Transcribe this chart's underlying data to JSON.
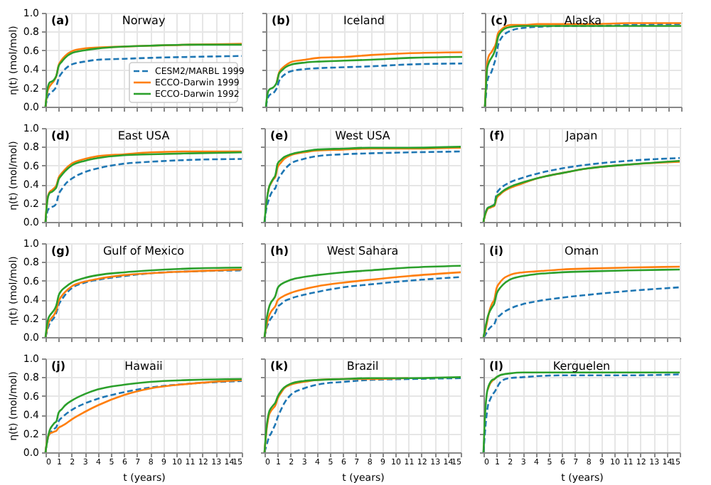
{
  "chart_data": [
    {
      "type": "line",
      "title": "Norway",
      "annotations": [
        "(a)"
      ],
      "x": [
        0,
        0.083,
        0.167,
        0.25,
        0.333,
        0.5,
        0.667,
        0.833,
        1,
        1.25,
        1.5,
        2,
        3,
        4,
        6,
        8,
        11,
        15
      ],
      "xlim": [
        0,
        15
      ],
      "xticks": [
        0,
        1,
        2,
        3,
        4,
        5,
        6,
        7,
        8,
        9,
        10,
        11,
        12,
        13,
        14,
        15
      ],
      "ylim": [
        0,
        1
      ],
      "yticks": [
        {
          "value": 0,
          "label": "0.0"
        },
        {
          "value": 0.2,
          "label": "0.2"
        },
        {
          "value": 0.4,
          "label": "0.4"
        },
        {
          "value": 0.6,
          "label": "0.6"
        },
        {
          "value": 0.8,
          "label": "0.8"
        },
        {
          "value": 1,
          "label": "1.0"
        }
      ],
      "grid": true,
      "tick_labels": "y",
      "ylabel": "η(t) (mol/mol)",
      "legend": "bottom right",
      "series": [
        {
          "name": "CESM2/MARBL 1999",
          "color": "#1f77b4",
          "line_style": "dashed",
          "values": [
            0,
            0.06,
            0.11,
            0.13,
            0.14,
            0.16,
            0.18,
            0.22,
            0.3,
            0.36,
            0.4,
            0.45,
            0.48,
            0.5,
            0.51,
            0.52,
            0.53,
            0.54
          ]
        },
        {
          "name": "ECCO-Darwin 1999",
          "color": "#ff7f0e",
          "line_style": "solid",
          "values": [
            0,
            0.1,
            0.17,
            0.2,
            0.22,
            0.25,
            0.28,
            0.33,
            0.44,
            0.5,
            0.54,
            0.59,
            0.62,
            0.63,
            0.64,
            0.65,
            0.66,
            0.67
          ]
        },
        {
          "name": "ECCO-Darwin 1992",
          "color": "#2ca02c",
          "line_style": "solid",
          "values": [
            0,
            0.12,
            0.2,
            0.24,
            0.26,
            0.27,
            0.29,
            0.33,
            0.43,
            0.48,
            0.52,
            0.57,
            0.6,
            0.62,
            0.64,
            0.65,
            0.66,
            0.66
          ]
        }
      ]
    },
    {
      "type": "line",
      "title": "Iceland",
      "annotations": [
        "(b)"
      ],
      "x": [
        0,
        0.083,
        0.167,
        0.25,
        0.333,
        0.5,
        0.667,
        0.833,
        1,
        1.25,
        1.5,
        2,
        3,
        4,
        6,
        8,
        11,
        15
      ],
      "xlim": [
        0,
        15
      ],
      "xticks": [
        0,
        1,
        2,
        3,
        4,
        5,
        6,
        7,
        8,
        9,
        10,
        11,
        12,
        13,
        14,
        15
      ],
      "ylim": [
        0,
        1
      ],
      "yticks": [
        0,
        0.2,
        0.4,
        0.6,
        0.8,
        1
      ],
      "grid": true,
      "tick_labels": false,
      "series": [
        {
          "color": "#1f77b4",
          "line_style": "dashed",
          "values": [
            0,
            0.06,
            0.1,
            0.12,
            0.13,
            0.14,
            0.16,
            0.2,
            0.27,
            0.32,
            0.35,
            0.38,
            0.4,
            0.41,
            0.42,
            0.43,
            0.45,
            0.46
          ]
        },
        {
          "color": "#ff7f0e",
          "line_style": "solid",
          "values": [
            null,
            null,
            null,
            null,
            null,
            null,
            null,
            0.26,
            0.36,
            0.41,
            0.44,
            0.48,
            0.5,
            0.52,
            0.53,
            0.55,
            0.57,
            0.58
          ]
        },
        {
          "color": "#2ca02c",
          "line_style": "solid",
          "values": [
            0,
            0.1,
            0.16,
            0.18,
            0.19,
            0.2,
            0.22,
            0.26,
            0.35,
            0.39,
            0.42,
            0.45,
            0.47,
            0.48,
            0.49,
            0.5,
            0.52,
            0.53
          ]
        }
      ]
    },
    {
      "type": "line",
      "title": "Alaska",
      "annotations": [
        "(c)"
      ],
      "x": [
        0,
        0.083,
        0.167,
        0.25,
        0.333,
        0.5,
        0.667,
        0.833,
        1,
        1.25,
        1.5,
        2,
        3,
        4,
        6,
        8,
        11,
        15
      ],
      "xlim": [
        0,
        15
      ],
      "xticks": [
        0,
        1,
        2,
        3,
        4,
        5,
        6,
        7,
        8,
        9,
        10,
        11,
        12,
        13,
        14,
        15
      ],
      "ylim": [
        0,
        1
      ],
      "yticks": [
        0,
        0.2,
        0.4,
        0.6,
        0.8,
        1
      ],
      "grid": true,
      "tick_labels": false,
      "series": [
        {
          "color": "#1f77b4",
          "line_style": "dashed",
          "values": [
            0,
            0.12,
            0.25,
            0.31,
            0.33,
            0.37,
            0.44,
            0.52,
            0.65,
            0.73,
            0.77,
            0.81,
            0.84,
            0.85,
            0.86,
            0.86,
            0.87,
            0.88
          ]
        },
        {
          "color": "#ff7f0e",
          "line_style": "solid",
          "values": [
            0,
            0.25,
            0.45,
            0.52,
            0.55,
            0.58,
            0.62,
            0.67,
            0.78,
            0.82,
            0.85,
            0.87,
            0.87,
            0.88,
            0.88,
            0.88,
            0.89,
            0.89
          ]
        },
        {
          "color": "#2ca02c",
          "line_style": "solid",
          "values": [
            0,
            0.22,
            0.4,
            0.45,
            0.48,
            0.52,
            0.56,
            0.63,
            0.74,
            0.8,
            0.83,
            0.85,
            0.86,
            0.86,
            0.86,
            0.86,
            0.86,
            0.86
          ]
        }
      ]
    },
    {
      "type": "line",
      "title": "East USA",
      "annotations": [
        "(d)"
      ],
      "x": [
        0,
        0.083,
        0.167,
        0.25,
        0.333,
        0.5,
        0.667,
        0.833,
        1,
        1.25,
        1.5,
        2,
        3,
        4,
        6,
        8,
        11,
        15
      ],
      "xlim": [
        0,
        15
      ],
      "xticks": [
        0,
        1,
        2,
        3,
        4,
        5,
        6,
        7,
        8,
        9,
        10,
        11,
        12,
        13,
        14,
        15
      ],
      "ylim": [
        0,
        1
      ],
      "yticks": [
        {
          "value": 0,
          "label": "0.0"
        },
        {
          "value": 0.2,
          "label": "0.2"
        },
        {
          "value": 0.4,
          "label": "0.4"
        },
        {
          "value": 0.6,
          "label": "0.6"
        },
        {
          "value": 0.8,
          "label": "0.8"
        },
        {
          "value": 1,
          "label": "1.0"
        }
      ],
      "grid": true,
      "tick_labels": "y",
      "ylabel": "η(t) (mol/mol)",
      "series": [
        {
          "color": "#1f77b4",
          "line_style": "dashed",
          "values": [
            0,
            0.07,
            0.12,
            0.14,
            0.15,
            0.16,
            0.17,
            0.2,
            0.29,
            0.35,
            0.4,
            0.46,
            0.53,
            0.57,
            0.62,
            0.64,
            0.66,
            0.67
          ]
        },
        {
          "color": "#ff7f0e",
          "line_style": "solid",
          "values": [
            0,
            0.16,
            0.26,
            0.3,
            0.32,
            0.34,
            0.36,
            0.39,
            0.47,
            0.52,
            0.56,
            0.62,
            0.67,
            0.7,
            0.72,
            0.74,
            0.75,
            0.75
          ]
        },
        {
          "color": "#2ca02c",
          "line_style": "solid",
          "values": [
            0,
            0.15,
            0.25,
            0.29,
            0.31,
            0.32,
            0.34,
            0.37,
            0.45,
            0.5,
            0.54,
            0.6,
            0.65,
            0.68,
            0.71,
            0.72,
            0.73,
            0.74
          ]
        }
      ]
    },
    {
      "type": "line",
      "title": "West USA",
      "annotations": [
        "(e)"
      ],
      "x": [
        0,
        0.083,
        0.167,
        0.25,
        0.333,
        0.5,
        0.667,
        0.833,
        1,
        1.25,
        1.5,
        2,
        3,
        4,
        6,
        8,
        11,
        15
      ],
      "xlim": [
        0,
        15
      ],
      "xticks": [
        0,
        1,
        2,
        3,
        4,
        5,
        6,
        7,
        8,
        9,
        10,
        11,
        12,
        13,
        14,
        15
      ],
      "ylim": [
        0,
        1
      ],
      "yticks": [
        0,
        0.2,
        0.4,
        0.6,
        0.8,
        1
      ],
      "grid": true,
      "tick_labels": false,
      "series": [
        {
          "color": "#1f77b4",
          "line_style": "dashed",
          "values": [
            0,
            0.08,
            0.16,
            0.2,
            0.24,
            0.3,
            0.34,
            0.36,
            0.44,
            0.5,
            0.55,
            0.62,
            0.67,
            0.7,
            0.72,
            0.73,
            0.74,
            0.75
          ]
        },
        {
          "color": "#ff7f0e",
          "line_style": "solid",
          "values": [
            null,
            null,
            null,
            0.3,
            0.36,
            0.41,
            0.45,
            0.48,
            0.58,
            0.63,
            0.67,
            0.71,
            0.74,
            0.76,
            0.77,
            0.78,
            0.78,
            0.79
          ]
        },
        {
          "color": "#2ca02c",
          "line_style": "solid",
          "values": [
            0,
            0.12,
            0.22,
            0.3,
            0.36,
            0.42,
            0.46,
            0.5,
            0.62,
            0.66,
            0.69,
            0.72,
            0.75,
            0.77,
            0.78,
            0.79,
            0.79,
            0.8
          ]
        }
      ]
    },
    {
      "type": "line",
      "title": "Japan",
      "annotations": [
        "(f)"
      ],
      "x": [
        0,
        0.083,
        0.167,
        0.25,
        0.333,
        0.5,
        0.667,
        0.833,
        1,
        1.25,
        1.5,
        2,
        3,
        4,
        6,
        8,
        11,
        15
      ],
      "xlim": [
        0,
        15
      ],
      "xticks": [
        0,
        1,
        2,
        3,
        4,
        5,
        6,
        7,
        8,
        9,
        10,
        11,
        12,
        13,
        14,
        15
      ],
      "ylim": [
        0,
        1
      ],
      "yticks": [
        0,
        0.2,
        0.4,
        0.6,
        0.8,
        1
      ],
      "grid": true,
      "tick_labels": false,
      "series": [
        {
          "color": "#1f77b4",
          "line_style": "dashed",
          "values": [
            0,
            0.06,
            0.1,
            0.13,
            0.15,
            0.16,
            0.17,
            0.19,
            0.3,
            0.35,
            0.38,
            0.42,
            0.47,
            0.51,
            0.57,
            0.61,
            0.65,
            0.68
          ]
        },
        {
          "color": "#ff7f0e",
          "line_style": "solid",
          "values": [
            0,
            0.05,
            0.09,
            0.12,
            0.14,
            0.15,
            0.16,
            0.17,
            0.25,
            0.29,
            0.32,
            0.36,
            0.41,
            0.46,
            0.52,
            0.57,
            0.61,
            0.64
          ]
        },
        {
          "color": "#2ca02c",
          "line_style": "solid",
          "values": [
            0,
            0.06,
            0.1,
            0.13,
            0.15,
            0.16,
            0.17,
            0.18,
            0.27,
            0.3,
            0.33,
            0.37,
            0.42,
            0.46,
            0.52,
            0.57,
            0.61,
            0.65
          ]
        }
      ]
    },
    {
      "type": "line",
      "title": "Gulf of Mexico",
      "annotations": [
        "(g)"
      ],
      "x": [
        0,
        0.083,
        0.167,
        0.25,
        0.333,
        0.5,
        0.667,
        0.833,
        1,
        1.25,
        1.5,
        2,
        3,
        4,
        6,
        8,
        11,
        15
      ],
      "xlim": [
        0,
        15
      ],
      "xticks": [
        0,
        1,
        2,
        3,
        4,
        5,
        6,
        7,
        8,
        9,
        10,
        11,
        12,
        13,
        14,
        15
      ],
      "ylim": [
        0,
        1
      ],
      "yticks": [
        {
          "value": 0,
          "label": "0.0"
        },
        {
          "value": 0.2,
          "label": "0.2"
        },
        {
          "value": 0.4,
          "label": "0.4"
        },
        {
          "value": 0.6,
          "label": "0.6"
        },
        {
          "value": 0.8,
          "label": "0.8"
        },
        {
          "value": 1,
          "label": "1.0"
        }
      ],
      "grid": true,
      "tick_labels": "y",
      "ylabel": "η(t) (mol/mol)",
      "series": [
        {
          "color": "#1f77b4",
          "line_style": "dashed",
          "values": [
            0,
            0.04,
            0.09,
            0.12,
            0.15,
            0.18,
            0.21,
            0.26,
            0.34,
            0.4,
            0.45,
            0.52,
            0.58,
            0.61,
            0.65,
            0.68,
            0.7,
            0.71
          ]
        },
        {
          "color": "#ff7f0e",
          "line_style": "solid",
          "values": [
            0,
            0.06,
            0.12,
            0.16,
            0.18,
            0.21,
            0.24,
            0.29,
            0.38,
            0.44,
            0.48,
            0.54,
            0.59,
            0.62,
            0.66,
            0.68,
            0.7,
            0.72
          ]
        },
        {
          "color": "#2ca02c",
          "line_style": "solid",
          "values": [
            0,
            0.1,
            0.17,
            0.21,
            0.23,
            0.26,
            0.29,
            0.34,
            0.44,
            0.5,
            0.53,
            0.58,
            0.63,
            0.66,
            0.69,
            0.71,
            0.73,
            0.74
          ]
        }
      ]
    },
    {
      "type": "line",
      "title": "West Sahara",
      "annotations": [
        "(h)"
      ],
      "x": [
        0,
        0.083,
        0.167,
        0.25,
        0.333,
        0.5,
        0.667,
        0.833,
        1,
        1.25,
        1.5,
        2,
        3,
        4,
        6,
        8,
        11,
        15
      ],
      "xlim": [
        0,
        15
      ],
      "xticks": [
        0,
        1,
        2,
        3,
        4,
        5,
        6,
        7,
        8,
        9,
        10,
        11,
        12,
        13,
        14,
        15
      ],
      "ylim": [
        0,
        1
      ],
      "yticks": [
        0,
        0.2,
        0.4,
        0.6,
        0.8,
        1
      ],
      "grid": true,
      "tick_labels": false,
      "series": [
        {
          "color": "#1f77b4",
          "line_style": "dashed",
          "values": [
            0,
            0.05,
            0.1,
            0.13,
            0.16,
            0.2,
            0.23,
            0.26,
            0.32,
            0.35,
            0.38,
            0.41,
            0.45,
            0.48,
            0.53,
            0.56,
            0.6,
            0.64
          ]
        },
        {
          "color": "#ff7f0e",
          "line_style": "solid",
          "values": [
            0,
            0.07,
            0.13,
            0.18,
            0.22,
            0.27,
            0.3,
            0.33,
            0.39,
            0.42,
            0.44,
            0.47,
            0.51,
            0.54,
            0.58,
            0.61,
            0.65,
            0.69
          ]
        },
        {
          "color": "#2ca02c",
          "line_style": "solid",
          "values": [
            0,
            0.1,
            0.2,
            0.26,
            0.31,
            0.37,
            0.4,
            0.44,
            0.52,
            0.56,
            0.58,
            0.61,
            0.64,
            0.66,
            0.69,
            0.71,
            0.74,
            0.76
          ]
        }
      ]
    },
    {
      "type": "line",
      "title": "Oman",
      "annotations": [
        "(i)"
      ],
      "x": [
        0,
        0.083,
        0.167,
        0.25,
        0.333,
        0.5,
        0.667,
        0.833,
        1,
        1.25,
        1.5,
        2,
        3,
        4,
        6,
        8,
        11,
        15
      ],
      "xlim": [
        0,
        15
      ],
      "xticks": [
        0,
        1,
        2,
        3,
        4,
        5,
        6,
        7,
        8,
        9,
        10,
        11,
        12,
        13,
        14,
        15
      ],
      "ylim": [
        0,
        1
      ],
      "yticks": [
        0,
        0.2,
        0.4,
        0.6,
        0.8,
        1
      ],
      "grid": true,
      "tick_labels": false,
      "series": [
        {
          "color": "#1f77b4",
          "line_style": "dashed",
          "values": [
            0,
            0.01,
            0.03,
            0.05,
            0.07,
            0.1,
            0.12,
            0.14,
            0.2,
            0.23,
            0.26,
            0.3,
            0.35,
            0.38,
            0.42,
            0.45,
            0.49,
            0.53
          ]
        },
        {
          "color": "#ff7f0e",
          "line_style": "solid",
          "values": [
            0,
            0.04,
            0.09,
            0.14,
            0.2,
            0.3,
            0.36,
            0.4,
            0.52,
            0.58,
            0.62,
            0.66,
            0.69,
            0.7,
            0.72,
            0.73,
            0.74,
            0.75
          ]
        },
        {
          "color": "#2ca02c",
          "line_style": "solid",
          "values": [
            0,
            0.06,
            0.12,
            0.17,
            0.22,
            0.28,
            0.32,
            0.36,
            0.46,
            0.52,
            0.56,
            0.61,
            0.65,
            0.67,
            0.69,
            0.7,
            0.71,
            0.72
          ]
        }
      ]
    },
    {
      "type": "line",
      "title": "Hawaii",
      "annotations": [
        "(j)"
      ],
      "x": [
        0,
        0.083,
        0.167,
        0.25,
        0.333,
        0.5,
        0.667,
        0.833,
        1,
        1.25,
        1.5,
        2,
        3,
        4,
        6,
        8,
        11,
        15
      ],
      "xlim": [
        0,
        15
      ],
      "xticks": [
        0,
        1,
        2,
        3,
        4,
        5,
        6,
        7,
        8,
        9,
        10,
        11,
        12,
        13,
        14,
        15
      ],
      "ylim": [
        0,
        1
      ],
      "yticks": [
        {
          "value": 0,
          "label": "0.0"
        },
        {
          "value": 0.2,
          "label": "0.2"
        },
        {
          "value": 0.4,
          "label": "0.4"
        },
        {
          "value": 0.6,
          "label": "0.6"
        },
        {
          "value": 0.8,
          "label": "0.8"
        },
        {
          "value": 1,
          "label": "1.0"
        }
      ],
      "grid": true,
      "xlabel": "t (years)",
      "ylabel": "η(t) (mol/mol)",
      "series": [
        {
          "color": "#1f77b4",
          "line_style": "dashed",
          "values": [
            0,
            0.08,
            0.14,
            0.18,
            0.2,
            0.23,
            0.25,
            0.27,
            0.33,
            0.37,
            0.4,
            0.45,
            0.52,
            0.57,
            0.64,
            0.69,
            0.73,
            0.76
          ]
        },
        {
          "color": "#ff7f0e",
          "line_style": "solid",
          "values": [
            0,
            0.09,
            0.15,
            0.18,
            0.2,
            0.21,
            0.22,
            0.23,
            0.26,
            0.28,
            0.3,
            0.35,
            0.43,
            0.5,
            0.61,
            0.68,
            0.73,
            0.77
          ]
        },
        {
          "color": "#2ca02c",
          "line_style": "solid",
          "values": [
            0,
            0.08,
            0.15,
            0.2,
            0.24,
            0.28,
            0.31,
            0.33,
            0.42,
            0.46,
            0.5,
            0.55,
            0.62,
            0.67,
            0.72,
            0.75,
            0.77,
            0.78
          ]
        }
      ]
    },
    {
      "type": "line",
      "title": "Brazil",
      "annotations": [
        "(k)"
      ],
      "x": [
        0,
        0.083,
        0.167,
        0.25,
        0.333,
        0.5,
        0.667,
        0.833,
        1,
        1.25,
        1.5,
        2,
        3,
        4,
        6,
        8,
        11,
        15
      ],
      "xlim": [
        0,
        15
      ],
      "xticks": [
        0,
        1,
        2,
        3,
        4,
        5,
        6,
        7,
        8,
        9,
        10,
        11,
        12,
        13,
        14,
        15
      ],
      "ylim": [
        0,
        1
      ],
      "yticks": [
        0,
        0.2,
        0.4,
        0.6,
        0.8,
        1
      ],
      "grid": true,
      "tick_labels": "x",
      "xlabel": "t (years)",
      "series": [
        {
          "color": "#1f77b4",
          "line_style": "dashed",
          "values": [
            0,
            0.04,
            0.08,
            0.12,
            0.16,
            0.2,
            0.25,
            0.3,
            0.37,
            0.45,
            0.52,
            0.61,
            0.68,
            0.72,
            0.75,
            0.77,
            0.78,
            0.79
          ]
        },
        {
          "color": "#ff7f0e",
          "line_style": "solid",
          "values": [
            0,
            0.13,
            0.25,
            0.33,
            0.39,
            0.44,
            0.47,
            0.5,
            0.57,
            0.63,
            0.68,
            0.72,
            0.75,
            0.77,
            0.78,
            0.78,
            0.79,
            null
          ]
        },
        {
          "color": "#2ca02c",
          "line_style": "solid",
          "values": [
            0,
            0.15,
            0.28,
            0.36,
            0.42,
            0.47,
            0.5,
            0.53,
            0.59,
            0.65,
            0.69,
            0.73,
            0.76,
            0.77,
            0.78,
            0.79,
            0.79,
            0.8
          ]
        }
      ]
    },
    {
      "type": "line",
      "title": "Kerguelen",
      "annotations": [
        "(l)"
      ],
      "x": [
        0,
        0.083,
        0.167,
        0.25,
        0.333,
        0.5,
        0.667,
        0.833,
        1,
        1.25,
        1.5,
        2,
        3,
        4,
        6,
        8,
        11,
        15
      ],
      "xlim": [
        0,
        15
      ],
      "xticks": [
        0,
        1,
        2,
        3,
        4,
        5,
        6,
        7,
        8,
        9,
        10,
        11,
        12,
        13,
        14,
        15
      ],
      "ylim": [
        0,
        1
      ],
      "yticks": [
        0,
        0.2,
        0.4,
        0.6,
        0.8,
        1
      ],
      "grid": true,
      "tick_labels": "x",
      "xlabel": "t (years)",
      "series": [
        {
          "color": "#1f77b4",
          "line_style": "dashed",
          "values": [
            0,
            0.15,
            0.3,
            0.41,
            0.49,
            0.56,
            0.61,
            0.64,
            0.68,
            0.74,
            0.77,
            0.79,
            0.8,
            0.81,
            0.82,
            0.82,
            0.82,
            0.83
          ]
        },
        {
          "color": "#ff7f0e",
          "line_style": "solid",
          "values": [
            null,
            null,
            null,
            null,
            0.67,
            0.73,
            0.76,
            0.78,
            0.8,
            null,
            null,
            null,
            null,
            null,
            null,
            null,
            null,
            null
          ]
        },
        {
          "color": "#2ca02c",
          "line_style": "solid",
          "values": [
            0,
            0.3,
            0.5,
            0.62,
            0.68,
            0.74,
            0.77,
            0.78,
            0.8,
            0.82,
            0.83,
            0.84,
            0.85,
            0.85,
            0.85,
            0.85,
            0.85,
            0.85
          ]
        }
      ]
    }
  ]
}
